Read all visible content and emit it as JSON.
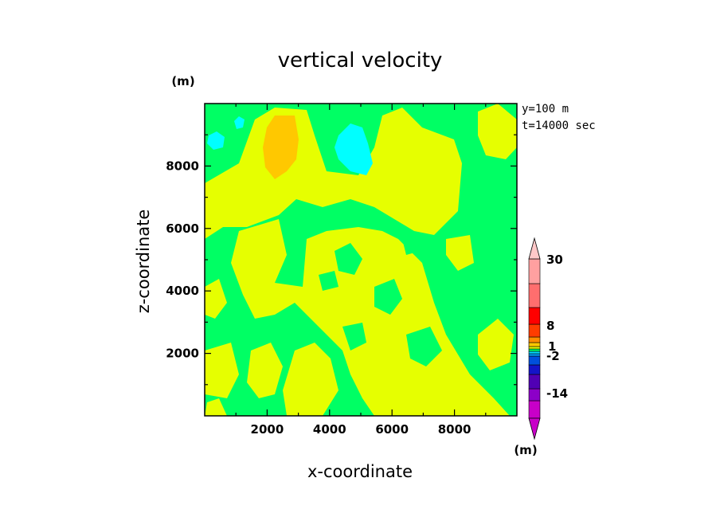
{
  "chart_data": {
    "type": "heatmap",
    "title": "vertical velocity",
    "xlabel": "x-coordinate",
    "ylabel": "z-coordinate",
    "x_unit": "(m)",
    "y_unit": "(m)",
    "info": [
      "y=100  m",
      "t=14000 sec"
    ],
    "xlim": [
      0,
      10000
    ],
    "ylim": [
      0,
      10000
    ],
    "x_ticks": [
      2000,
      4000,
      6000,
      8000
    ],
    "x_tick_labels": [
      "2000",
      "4000",
      "6000",
      "8000"
    ],
    "y_ticks": [
      2000,
      4000,
      6000,
      8000
    ],
    "y_tick_labels": [
      "2000",
      "4000",
      "6000",
      "8000"
    ],
    "colorbar": {
      "unit": "(m)",
      "colors": [
        "#c800c8",
        "#8c00c8",
        "#5000b4",
        "#1414c8",
        "#0050dc",
        "#00a0ff",
        "#00dcff",
        "#00ff64",
        "#e6ff00",
        "#ffc800",
        "#ff8c00",
        "#ff3c00",
        "#ff0000",
        "#ff6e6e",
        "#ffa0a0",
        "#ffc8c8",
        "#ffe0e0"
      ],
      "tick_labels": [
        "30",
        "8",
        "1",
        "-2",
        "-14"
      ]
    },
    "field_colors": {
      "background": "#00ff64",
      "positive": "#e6ff00",
      "strong_positive": "#ffc800",
      "negative": "#00ffff"
    }
  }
}
